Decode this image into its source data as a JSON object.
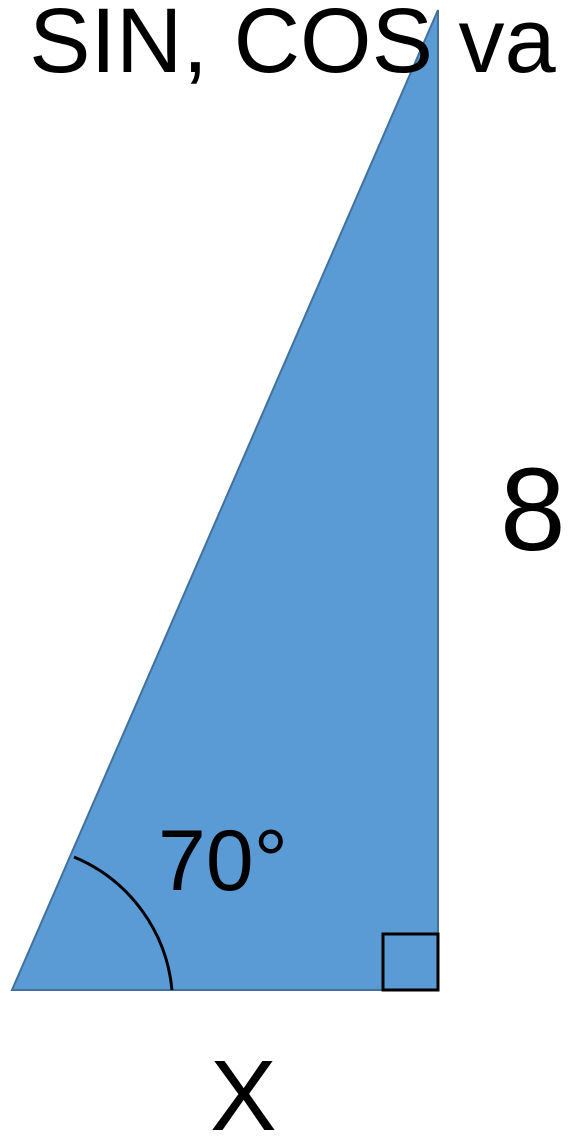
{
  "diagram": {
    "header_text": ", SIN, COS va",
    "angle_label": "70°",
    "opposite_side_label": "8",
    "adjacent_side_label": "X",
    "colors": {
      "triangle_fill": "#5b9bd5",
      "triangle_stroke": "#41719c",
      "ink": "#000000",
      "background": "#ffffff"
    }
  }
}
